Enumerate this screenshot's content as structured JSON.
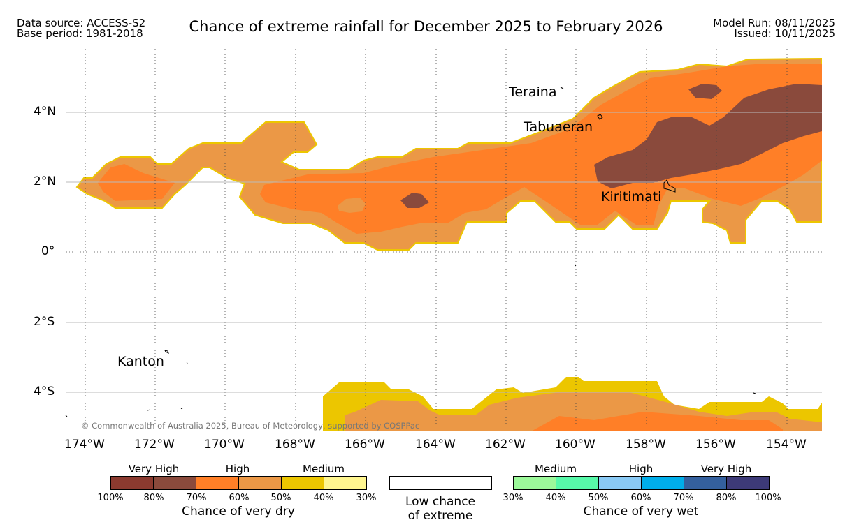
{
  "header": {
    "data_source": "Data source: ACCESS-S2",
    "base_period": "Base period: 1981-2018",
    "title": "Chance of extreme rainfall for December 2025 to February 2026",
    "model_run": "Model Run: 08/11/2025",
    "issued": "Issued: 10/11/2025"
  },
  "map": {
    "x_ticks": [
      "174°W",
      "172°W",
      "170°W",
      "168°W",
      "166°W",
      "164°W",
      "162°W",
      "160°W",
      "158°W",
      "156°W",
      "154°W"
    ],
    "y_ticks": [
      "4°N",
      "2°N",
      "0°",
      "2°S",
      "4°S"
    ],
    "places": [
      "Teraina",
      "Tabuaeran",
      "Kiritimati",
      "Kanton"
    ],
    "copyright": "© Commonwealth of Australia 2025, Bureau of Meteorology, supported by COSPPac"
  },
  "legend": {
    "dry": {
      "levels": [
        "Very High",
        "High",
        "Medium"
      ],
      "colors": [
        "#8b3a2f",
        "#8a4a3c",
        "#ff7f27",
        "#eb9846",
        "#ecc600",
        "#fff68f"
      ],
      "ticks": [
        "100%",
        "80%",
        "70%",
        "60%",
        "50%",
        "40%",
        "30%"
      ],
      "caption": "Chance of very dry"
    },
    "low": {
      "line1": "Low chance",
      "line2": "of extreme",
      "color": "#ffffff"
    },
    "wet": {
      "levels": [
        "Medium",
        "High",
        "Very High"
      ],
      "colors": [
        "#9cf99a",
        "#57f9a9",
        "#8acaf5",
        "#00aeea",
        "#34609e",
        "#3d3a78"
      ],
      "ticks": [
        "30%",
        "40%",
        "50%",
        "60%",
        "70%",
        "80%",
        "100%"
      ],
      "caption": "Chance of very wet"
    }
  }
}
